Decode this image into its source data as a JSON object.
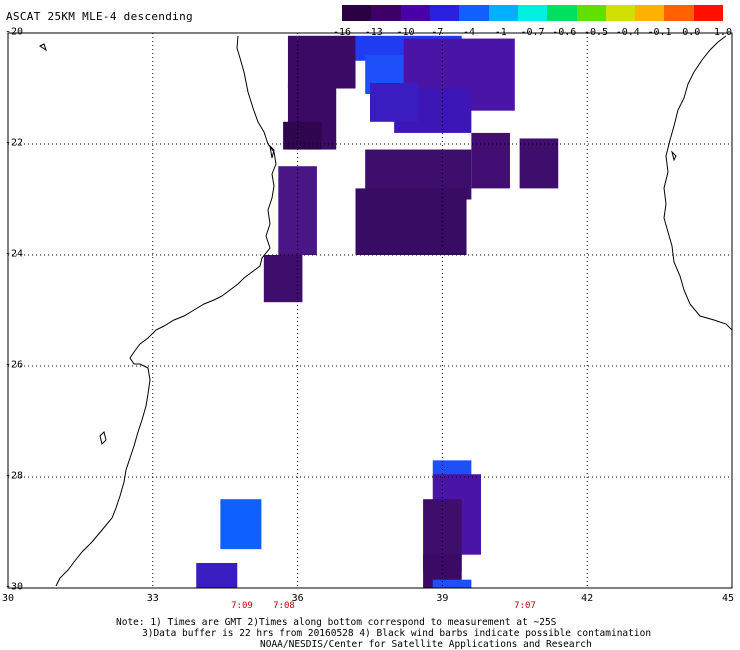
{
  "title": "ASCAT 25KM MLE-4 descending",
  "colorbar": {
    "labels": [
      "-16",
      "-13",
      "-10",
      "-7",
      "-4",
      "-1",
      "-0.7",
      "-0.6",
      "-0.5",
      "-0.4",
      "-0.1",
      "0.0",
      "1.0"
    ],
    "colors": [
      "#2a0040",
      "#3c0068",
      "#4a00a8",
      "#2a20e0",
      "#1060ff",
      "#00b0ff",
      "#00f0e0",
      "#00e060",
      "#60e000",
      "#d0e000",
      "#ffb000",
      "#ff6000",
      "#ff1000"
    ]
  },
  "axes": {
    "lat_labels": [
      "-20",
      "-22",
      "-24",
      "-26",
      "-28",
      "-30"
    ],
    "lon_labels": [
      "30",
      "33",
      "36",
      "39",
      "42",
      "45"
    ],
    "lat_range": [
      -30,
      -20
    ],
    "lon_range": [
      30,
      45
    ],
    "grid": "dotted"
  },
  "time_labels": [
    "7:09",
    "7:08",
    "7:07"
  ],
  "notes": [
    "Note: 1) Times are GMT 2)Times along bottom correspond to measurement at ~25S",
    "3)Data buffer is 22 hrs from 20160528 4) Black wind barbs indicate possible contamination",
    "NOAA/NESDIS/Center for Satellite Applications and Research"
  ],
  "swaths": [
    {
      "lon0": 35.8,
      "lon1": 37.2,
      "lat0": -20.05,
      "lat1": -21.0,
      "color": "#3a0a64"
    },
    {
      "lon0": 35.8,
      "lon1": 36.8,
      "lat0": -20.9,
      "lat1": -22.1,
      "color": "#3a0a64"
    },
    {
      "lon0": 35.7,
      "lon1": 36.5,
      "lat0": -21.6,
      "lat1": -22.1,
      "color": "#300550"
    },
    {
      "lon0": 37.2,
      "lon1": 39.4,
      "lat0": -20.05,
      "lat1": -20.5,
      "color": "#1f3cf0"
    },
    {
      "lon0": 37.4,
      "lon1": 39.1,
      "lat0": -20.4,
      "lat1": -21.1,
      "color": "#1d50f8"
    },
    {
      "lon0": 38.2,
      "lon1": 40.5,
      "lat0": -20.1,
      "lat1": -21.4,
      "color": "#4a14a6"
    },
    {
      "lon0": 38.0,
      "lon1": 39.6,
      "lat0": -21.0,
      "lat1": -21.8,
      "color": "#3c16b6"
    },
    {
      "lon0": 37.5,
      "lon1": 38.5,
      "lat0": -20.9,
      "lat1": -21.6,
      "color": "#3a1cc0"
    },
    {
      "lon0": 37.4,
      "lon1": 39.6,
      "lat0": -22.1,
      "lat1": -23.0,
      "color": "#3d0e6c"
    },
    {
      "lon0": 39.6,
      "lon1": 40.4,
      "lat0": -21.8,
      "lat1": -22.8,
      "color": "#420e74"
    },
    {
      "lon0": 40.6,
      "lon1": 41.4,
      "lat0": -21.9,
      "lat1": -22.8,
      "color": "#3d0e6c"
    },
    {
      "lon0": 37.2,
      "lon1": 39.5,
      "lat0": -22.8,
      "lat1": -24.0,
      "color": "#380c62"
    },
    {
      "lon0": 35.6,
      "lon1": 36.4,
      "lat0": -22.4,
      "lat1": -24.0,
      "color": "#4a1686"
    },
    {
      "lon0": 35.3,
      "lon1": 36.1,
      "lat0": -24.0,
      "lat1": -24.85,
      "color": "#3d0e6c"
    },
    {
      "lon0": 34.4,
      "lon1": 35.25,
      "lat0": -28.4,
      "lat1": -29.3,
      "color": "#1060ff"
    },
    {
      "lon0": 33.9,
      "lon1": 34.75,
      "lat0": -29.55,
      "lat1": -30.0,
      "color": "#3a1cc0"
    },
    {
      "lon0": 38.8,
      "lon1": 39.6,
      "lat0": -27.7,
      "lat1": -28.0,
      "color": "#1d50f8"
    },
    {
      "lon0": 38.8,
      "lon1": 39.8,
      "lat0": -27.95,
      "lat1": -29.4,
      "color": "#4a14a6"
    },
    {
      "lon0": 38.6,
      "lon1": 39.4,
      "lat0": -28.4,
      "lat1": -29.7,
      "color": "#3d0e6c"
    },
    {
      "lon0": 38.6,
      "lon1": 39.4,
      "lat0": -29.4,
      "lat1": -30.0,
      "color": "#3a0a64"
    },
    {
      "lon0": 38.8,
      "lon1": 39.6,
      "lat0": -29.85,
      "lat1": -30.0,
      "color": "#1d50f8"
    }
  ]
}
